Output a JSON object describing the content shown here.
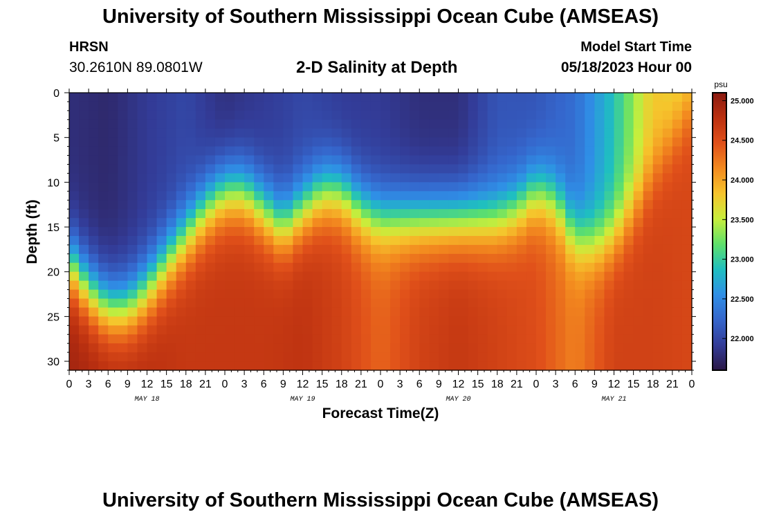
{
  "title": "University of Southern Mississippi Ocean Cube (AMSEAS)",
  "footer_title": "University of Southern Mississippi Ocean Cube (AMSEAS)",
  "station": {
    "name": "HRSN",
    "coords": "30.2610N  89.0801W"
  },
  "model_start": {
    "label": "Model Start Time",
    "value": "05/18/2023 Hour 00"
  },
  "colors": {
    "colormap": [
      "#2b1846",
      "#333c98",
      "#3566cc",
      "#2f8fe6",
      "#1fbfc0",
      "#5fe06a",
      "#c8ee3c",
      "#f6c42c",
      "#f38a1f",
      "#e0501a",
      "#bb3010",
      "#8a1a10"
    ]
  },
  "chart_data": {
    "type": "heatmap",
    "subtitle": "2-D Salinity at Depth",
    "xlabel": "Forecast Time(Z)",
    "ylabel": "Depth (ft)",
    "colorbar_unit": "psu",
    "xlim": [
      0,
      96
    ],
    "ylim": [
      0,
      31
    ],
    "vmin": 21.6,
    "vmax": 25.1,
    "x_ticks": [
      0,
      3,
      6,
      9,
      12,
      15,
      18,
      21,
      24,
      27,
      30,
      33,
      36,
      39,
      42,
      45,
      48,
      51,
      54,
      57,
      60,
      63,
      66,
      69,
      72,
      75,
      78,
      81,
      84,
      87,
      90,
      93,
      96
    ],
    "x_tick_labels": [
      "0",
      "3",
      "6",
      "9",
      "12",
      "15",
      "18",
      "21",
      "0",
      "3",
      "6",
      "9",
      "12",
      "15",
      "18",
      "21",
      "0",
      "3",
      "6",
      "9",
      "12",
      "15",
      "18",
      "21",
      "0",
      "3",
      "6",
      "9",
      "12",
      "15",
      "18",
      "21",
      "0"
    ],
    "y_ticks": [
      0,
      5,
      10,
      15,
      20,
      25,
      30
    ],
    "y_tick_labels": [
      "0",
      "5",
      "10",
      "15",
      "20",
      "25",
      "30"
    ],
    "day_labels": [
      {
        "x": 12,
        "label": "MAY 18"
      },
      {
        "x": 36,
        "label": "MAY 19"
      },
      {
        "x": 60,
        "label": "MAY 20"
      },
      {
        "x": 84,
        "label": "MAY 21"
      }
    ],
    "colorbar_ticks": [
      22.0,
      22.5,
      23.0,
      23.5,
      24.0,
      24.5,
      25.0
    ],
    "colorbar_tick_labels": [
      "22.000",
      "22.500",
      "23.000",
      "23.500",
      "24.000",
      "24.500",
      "25.000"
    ],
    "halocline_depth": {
      "time": [
        0,
        3,
        6,
        9,
        12,
        15,
        18,
        21,
        24,
        27,
        30,
        33,
        36,
        39,
        42,
        45,
        48,
        51,
        54,
        57,
        60,
        63,
        66,
        69,
        72,
        75,
        78,
        81,
        84,
        87,
        90,
        93,
        96
      ],
      "depth": [
        19,
        22,
        24,
        24,
        22,
        19,
        16,
        13,
        11,
        11,
        13,
        15,
        13,
        11,
        11,
        13,
        14,
        14,
        14,
        14,
        14,
        14,
        14,
        13,
        11,
        12,
        16,
        17,
        16,
        13,
        9,
        5,
        1
      ]
    },
    "surface_salinity": {
      "time": [
        0,
        6,
        12,
        18,
        24,
        30,
        36,
        42,
        48,
        54,
        60,
        66,
        72,
        78,
        84,
        90,
        96
      ],
      "value": [
        21.8,
        21.75,
        21.9,
        22.0,
        21.8,
        21.9,
        22.0,
        21.9,
        21.9,
        21.8,
        21.8,
        22.1,
        22.1,
        22.3,
        22.9,
        23.8,
        23.6
      ]
    },
    "bottom_salinity": {
      "time": [
        0,
        6,
        12,
        18,
        24,
        30,
        36,
        42,
        48,
        54,
        60,
        66,
        72,
        78,
        84,
        90,
        96
      ],
      "value": [
        24.95,
        24.85,
        24.8,
        24.7,
        24.7,
        24.7,
        24.75,
        24.6,
        24.35,
        24.6,
        24.7,
        24.6,
        24.5,
        24.2,
        24.6,
        24.6,
        24.55
      ]
    }
  }
}
